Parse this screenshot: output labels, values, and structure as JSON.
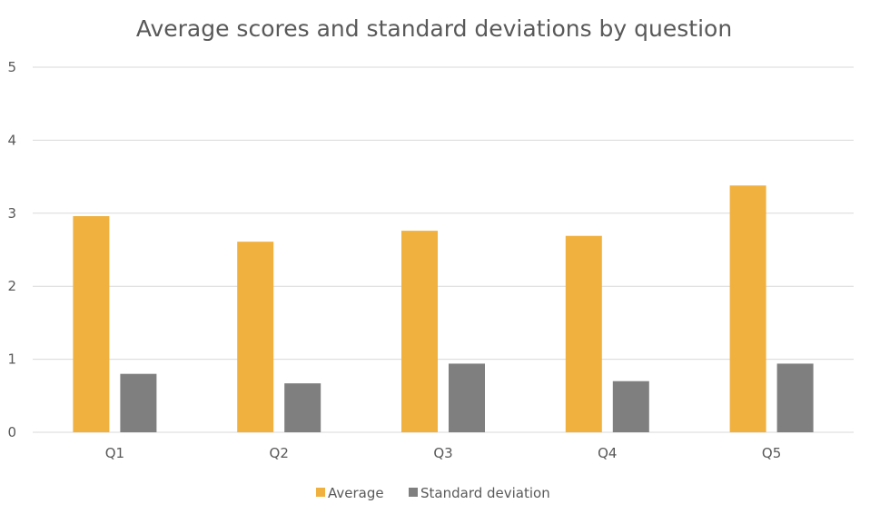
{
  "chart_data": {
    "type": "bar",
    "title": "Average scores and standard deviations by question",
    "xlabel": "",
    "ylabel": "",
    "categories": [
      "Q1",
      "Q2",
      "Q3",
      "Q4",
      "Q5"
    ],
    "series": [
      {
        "name": "Average",
        "color": "#F0B13F",
        "values": [
          2.96,
          2.61,
          2.76,
          2.69,
          3.38
        ]
      },
      {
        "name": "Standard deviation",
        "color": "#7F7F7F",
        "values": [
          0.8,
          0.67,
          0.94,
          0.7,
          0.94
        ]
      }
    ],
    "ylim": [
      0,
      5
    ],
    "yticks": [
      "0",
      "1",
      "2",
      "3",
      "4",
      "5"
    ],
    "grid": true,
    "legend": "bottom"
  }
}
